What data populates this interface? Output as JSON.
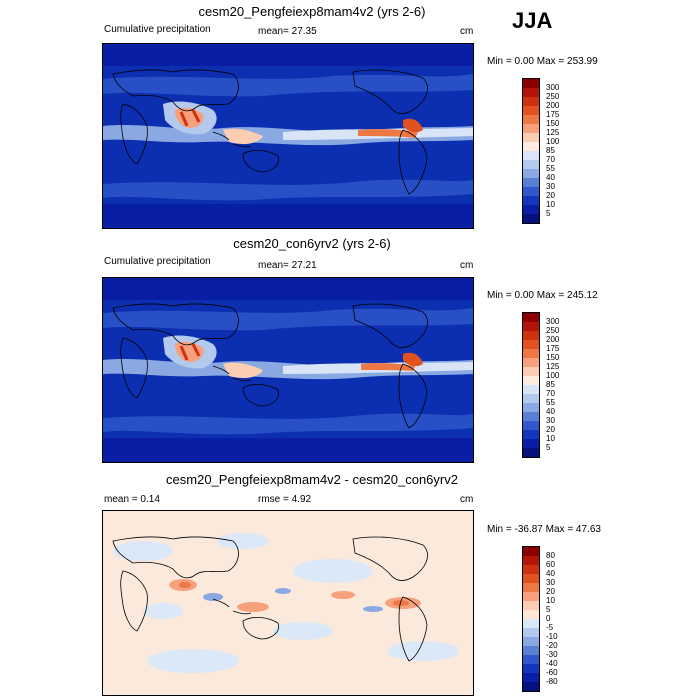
{
  "season": "JJA",
  "panels": [
    {
      "id": "p1",
      "title": "cesm20_Pengfeiexp8mam4v2 (yrs 2-6)",
      "left_text": "Cumulative precipitation",
      "mid_text": "mean=  27.35",
      "units": "cm",
      "minmax": "Min =   0.00 Max = 253.99",
      "colorbar": {
        "labels": [
          "300",
          "250",
          "200",
          "175",
          "150",
          "125",
          "100",
          "85",
          "70",
          "55",
          "40",
          "30",
          "20",
          "10",
          "5"
        ],
        "colors": [
          "#8b0000",
          "#b01508",
          "#cf3010",
          "#e0521f",
          "#ee7746",
          "#f6a07c",
          "#fbcdb2",
          "#fdecdf",
          "#d9e5f7",
          "#b3c9ee",
          "#8aa8e2",
          "#5a80d6",
          "#3058cb",
          "#1236bd",
          "#0a1ea3",
          "#061180"
        ]
      }
    },
    {
      "id": "p2",
      "title": "cesm20_con6yrv2 (yrs 2-6)",
      "left_text": "Cumulative precipitation",
      "mid_text": "mean=  27.21",
      "units": "cm",
      "minmax": "Min =   0.00 Max = 245.12",
      "colorbar": {
        "labels": [
          "300",
          "250",
          "200",
          "175",
          "150",
          "125",
          "100",
          "85",
          "70",
          "55",
          "40",
          "30",
          "20",
          "10",
          "5"
        ],
        "colors": [
          "#8b0000",
          "#b01508",
          "#cf3010",
          "#e0521f",
          "#ee7746",
          "#f6a07c",
          "#fbcdb2",
          "#fdecdf",
          "#d9e5f7",
          "#b3c9ee",
          "#8aa8e2",
          "#5a80d6",
          "#3058cb",
          "#1236bd",
          "#0a1ea3",
          "#061180"
        ]
      }
    },
    {
      "id": "p3",
      "title": "cesm20_Pengfeiexp8mam4v2 - cesm20_con6yrv2",
      "left_text": "mean =   0.14",
      "mid_text": "rmse =   4.92",
      "units": "cm",
      "minmax": "Min = -36.87 Max =  47.63",
      "colorbar": {
        "labels": [
          "80",
          "60",
          "40",
          "30",
          "20",
          "10",
          "5",
          "0",
          "-5",
          "-10",
          "-20",
          "-30",
          "-40",
          "-60",
          "-80"
        ],
        "colors": [
          "#8b0000",
          "#b01508",
          "#cf3010",
          "#e0521f",
          "#ee7746",
          "#f6a07c",
          "#fbcdb2",
          "#fde6d6",
          "#dbe8f8",
          "#b3c9ee",
          "#8aa8e2",
          "#5a80d6",
          "#3058cb",
          "#1236bd",
          "#0a1ea3",
          "#061180"
        ]
      }
    }
  ],
  "chart_data": [
    {
      "type": "heatmap",
      "title": "cesm20_Pengfeiexp8mam4v2 (yrs 2-6)",
      "subtitle": "Cumulative precipitation",
      "units": "cm",
      "mean": 27.35,
      "min": 0.0,
      "max": 253.99,
      "levels": [
        5,
        10,
        20,
        30,
        40,
        55,
        70,
        85,
        100,
        125,
        150,
        175,
        200,
        250,
        300
      ]
    },
    {
      "type": "heatmap",
      "title": "cesm20_con6yrv2 (yrs 2-6)",
      "subtitle": "Cumulative precipitation",
      "units": "cm",
      "mean": 27.21,
      "min": 0.0,
      "max": 245.12,
      "levels": [
        5,
        10,
        20,
        30,
        40,
        55,
        70,
        85,
        100,
        125,
        150,
        175,
        200,
        250,
        300
      ]
    },
    {
      "type": "heatmap",
      "title": "cesm20_Pengfeiexp8mam4v2 - cesm20_con6yrv2",
      "units": "cm",
      "mean": 0.14,
      "rmse": 4.92,
      "min": -36.87,
      "max": 47.63,
      "levels": [
        -80,
        -60,
        -40,
        -30,
        -20,
        -10,
        -5,
        0,
        5,
        10,
        20,
        30,
        40,
        60,
        80
      ]
    }
  ]
}
